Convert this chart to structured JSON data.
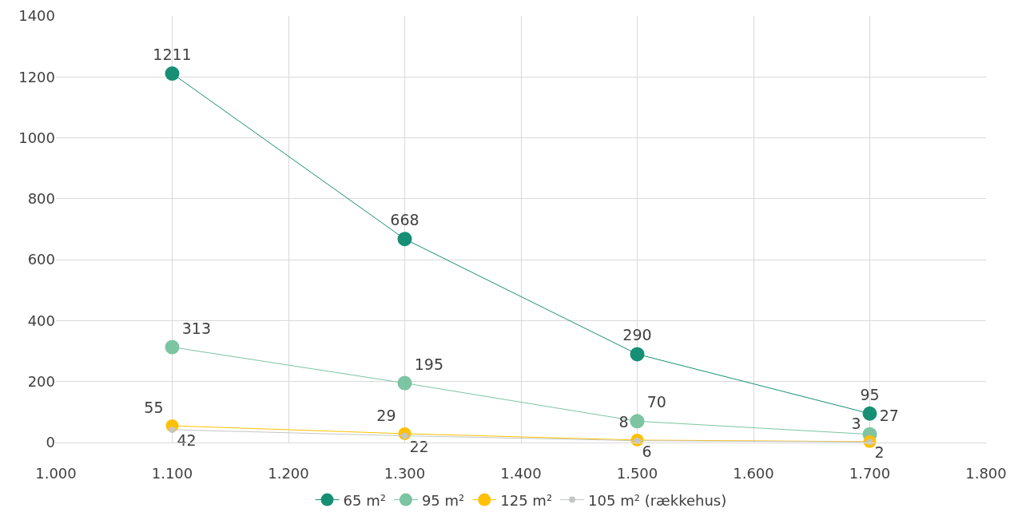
{
  "chart_data": {
    "type": "line",
    "x": [
      1100,
      1300,
      1500,
      1700
    ],
    "series": [
      {
        "name": "65 m²",
        "color": "#168f74",
        "values": [
          1211,
          668,
          290,
          95
        ]
      },
      {
        "name": "95 m²",
        "color": "#7cc4a2",
        "values": [
          313,
          195,
          70,
          27
        ]
      },
      {
        "name": "125 m²",
        "color": "#ffc000",
        "values": [
          55,
          29,
          8,
          3
        ]
      },
      {
        "name": "105 m² (rækkehus)",
        "color": "#c4c6c6",
        "values": [
          42,
          22,
          6,
          2
        ]
      }
    ],
    "xlim": [
      1000,
      1800
    ],
    "xticks": [
      {
        "value": 1000,
        "label": "1.000"
      },
      {
        "value": 1100,
        "label": "1.100"
      },
      {
        "value": 1200,
        "label": "1.200"
      },
      {
        "value": 1300,
        "label": "1.300"
      },
      {
        "value": 1400,
        "label": "1.400"
      },
      {
        "value": 1500,
        "label": "1.500"
      },
      {
        "value": 1600,
        "label": "1.600"
      },
      {
        "value": 1700,
        "label": "1.700"
      },
      {
        "value": 1800,
        "label": "1.800"
      }
    ],
    "ylim": [
      0,
      1400
    ],
    "yticks": [
      0,
      200,
      400,
      600,
      800,
      1000,
      1200,
      1400
    ],
    "grid": true,
    "legend": "bottom",
    "marker": "circle",
    "line_style": "solid",
    "data_labels": true
  }
}
